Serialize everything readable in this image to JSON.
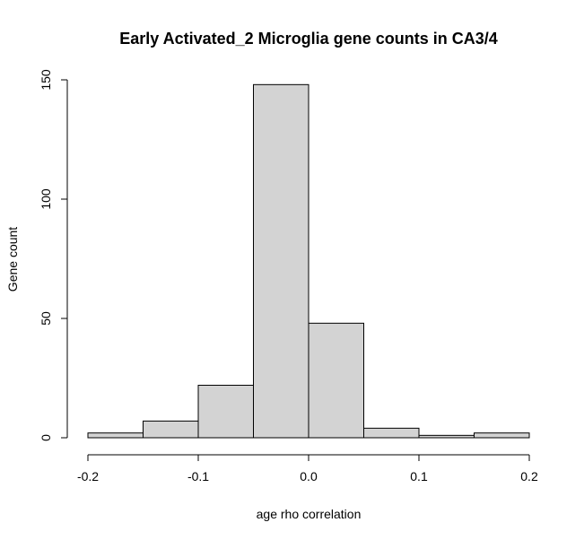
{
  "chart_data": {
    "type": "bar",
    "subtype": "histogram",
    "title": "Early Activated_2 Microglia gene counts in CA3/4",
    "xlabel": "age rho correlation",
    "ylabel": "Gene count",
    "bins": [
      {
        "x0": -0.2,
        "x1": -0.15,
        "count": 2
      },
      {
        "x0": -0.15,
        "x1": -0.1,
        "count": 7
      },
      {
        "x0": -0.1,
        "x1": -0.05,
        "count": 22
      },
      {
        "x0": -0.05,
        "x1": 0.0,
        "count": 148
      },
      {
        "x0": 0.0,
        "x1": 0.05,
        "count": 48
      },
      {
        "x0": 0.05,
        "x1": 0.1,
        "count": 4
      },
      {
        "x0": 0.1,
        "x1": 0.15,
        "count": 1
      },
      {
        "x0": 0.15,
        "x1": 0.2,
        "count": 2
      }
    ],
    "xlim": [
      -0.2,
      0.2
    ],
    "ylim": [
      0,
      150
    ],
    "x_ticks": [
      -0.2,
      -0.1,
      0.0,
      0.1,
      0.2
    ],
    "x_tick_labels": [
      "-0.2",
      "-0.1",
      "0.0",
      "0.1",
      "0.2"
    ],
    "y_ticks": [
      0,
      50,
      100,
      150
    ],
    "y_tick_labels": [
      "0",
      "50",
      "100",
      "150"
    ],
    "bar_fill": "#d3d3d3",
    "bar_stroke": "#000000",
    "grid": false,
    "legend": "none"
  }
}
